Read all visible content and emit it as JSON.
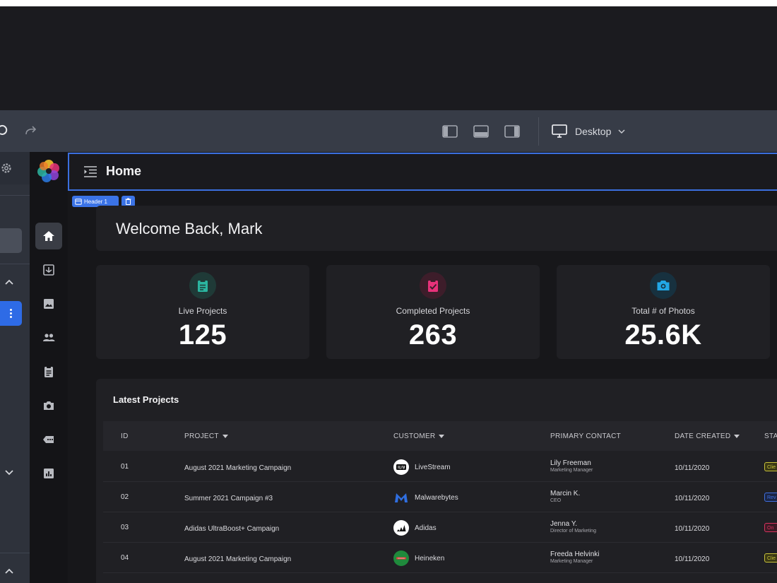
{
  "editor": {
    "device_label": "Desktop",
    "header_chip_label": "Header 1"
  },
  "app": {
    "page_title": "Home",
    "welcome": "Welcome Back, Mark"
  },
  "stats": [
    {
      "label": "Live Projects",
      "value": "125",
      "color": "#2bb5a0",
      "bg": "#1f3a37",
      "icon": "clipboard-icon"
    },
    {
      "label": "Completed Projects",
      "value": "263",
      "color": "#e8327a",
      "bg": "#3d1d2a",
      "icon": "check-clipboard-icon"
    },
    {
      "label": "Total # of Photos",
      "value": "25.6K",
      "color": "#22a7e6",
      "bg": "#17313f",
      "icon": "camera-icon"
    }
  ],
  "table": {
    "title": "Latest Projects",
    "headers": {
      "id": "ID",
      "project": "PROJECT",
      "customer": "CUSTOMER",
      "contact": "PRIMARY CONTACT",
      "date": "DATE CREATED",
      "status": "STA"
    },
    "rows": [
      {
        "id": "01",
        "project": "August 2021 Marketing Campaign",
        "customer": "LiveStream",
        "contact_name": "Lily Freeman",
        "contact_role": "Marketing Manager",
        "date": "10/11/2020",
        "status": "Clie",
        "status_color": "#c9c23a",
        "status_bg": "#3a3814"
      },
      {
        "id": "02",
        "project": "Summer 2021 Campaign #3",
        "customer": "Malwarebytes",
        "contact_name": "Marcin K.",
        "contact_role": "CEO",
        "date": "10/11/2020",
        "status": "Rev",
        "status_color": "#3f6fe0",
        "status_bg": "#1a2544"
      },
      {
        "id": "03",
        "project": "Adidas UltraBoost+ Campaign",
        "customer": "Adidas",
        "contact_name": "Jenna Y.",
        "contact_role": "Director of Marketing",
        "date": "10/11/2020",
        "status": "On",
        "status_color": "#d8335f",
        "status_bg": "#3d1a25"
      },
      {
        "id": "04",
        "project": "August 2021 Marketing Campaign",
        "customer": "Heineken",
        "contact_name": "Freeda Helvinki",
        "contact_role": "Marketing Manager",
        "date": "10/11/2020",
        "status": "Clie",
        "status_color": "#c9c23a",
        "status_bg": "#3a3814"
      }
    ]
  }
}
